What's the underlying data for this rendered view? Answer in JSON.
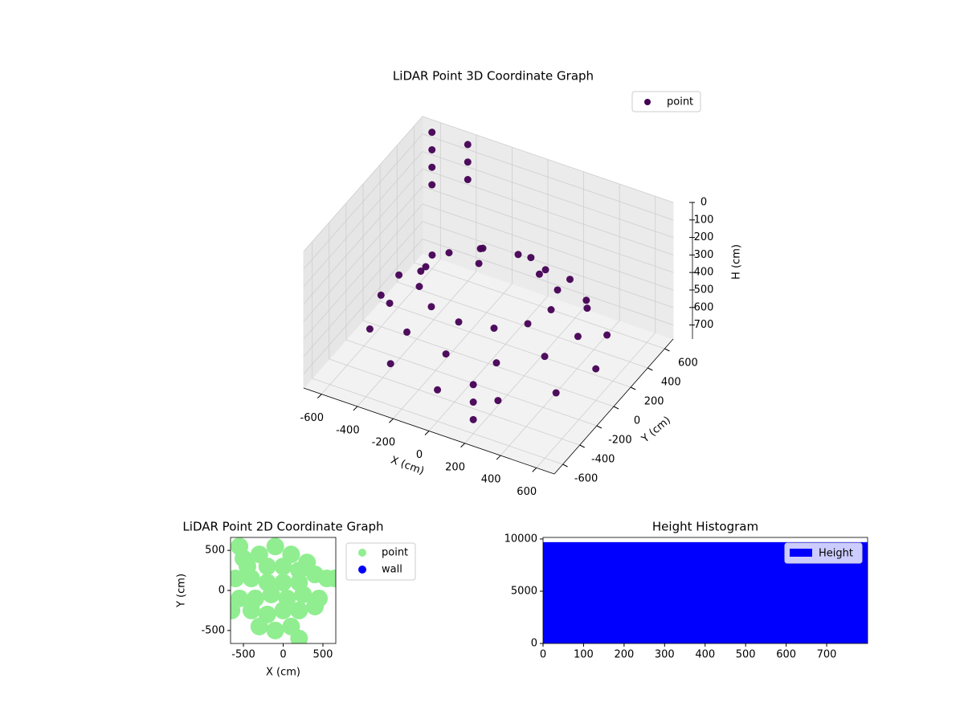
{
  "chart_data": [
    {
      "type": "scatter3d",
      "title": "LiDAR Point 3D Coordinate Graph",
      "xlabel": "X (cm)",
      "ylabel": "Y (cm)",
      "zlabel": "H (cm)",
      "xlim": [
        -700,
        700
      ],
      "ylim": [
        -700,
        700
      ],
      "zlim": [
        0,
        780
      ],
      "z_inverted": true,
      "xticks": [
        -600,
        -400,
        -200,
        0,
        200,
        400,
        600
      ],
      "yticks": [
        -600,
        -400,
        -200,
        0,
        200,
        400,
        600
      ],
      "zticks": [
        0,
        100,
        200,
        300,
        400,
        500,
        600,
        700
      ],
      "grid": true,
      "legend": "upper right",
      "series": [
        {
          "name": "point",
          "color": "#440154",
          "x": [
            500,
            433,
            250,
            0,
            -250,
            -433,
            -500,
            -433,
            -250,
            0,
            250,
            433,
            350,
            303,
            175,
            0,
            -175,
            -303,
            -350,
            -303,
            -175,
            0,
            175,
            303,
            600,
            520,
            300,
            0,
            -300,
            -520,
            -600,
            -520,
            -300,
            0,
            300,
            520,
            -600,
            -600,
            -600,
            -600,
            -400,
            -400,
            -400,
            200,
            200,
            200
          ],
          "y": [
            0,
            250,
            433,
            500,
            433,
            250,
            0,
            -250,
            -433,
            -500,
            -433,
            -250,
            0,
            175,
            303,
            350,
            303,
            175,
            0,
            -175,
            -303,
            -350,
            -303,
            -175,
            0,
            300,
            520,
            600,
            520,
            300,
            0,
            -300,
            -520,
            -600,
            -520,
            -300,
            600,
            600,
            600,
            600,
            600,
            600,
            600,
            -600,
            -600,
            -600
          ],
          "z": [
            450,
            450,
            450,
            450,
            450,
            450,
            450,
            450,
            450,
            450,
            450,
            450,
            350,
            350,
            350,
            350,
            350,
            350,
            350,
            350,
            350,
            350,
            350,
            350,
            600,
            600,
            600,
            600,
            600,
            600,
            600,
            600,
            600,
            600,
            600,
            600,
            0,
            100,
            200,
            300,
            0,
            100,
            200,
            500,
            600,
            700
          ]
        }
      ]
    },
    {
      "type": "scatter",
      "title": "LiDAR Point 2D Coordinate Graph",
      "xlabel": "X (cm)",
      "ylabel": "Y (cm)",
      "xlim": [
        -662,
        662
      ],
      "ylim": [
        -662,
        662
      ],
      "xticks": [
        -500,
        0,
        500
      ],
      "yticks": [
        -500,
        0,
        500
      ],
      "legend": "outside upper right",
      "series": [
        {
          "name": "point",
          "color": "#90ee90",
          "x": [
            -100,
            -300,
            100,
            300,
            -450,
            -200,
            0,
            200,
            400,
            -600,
            -400,
            -200,
            0,
            200,
            550,
            650,
            -550,
            -350,
            -150,
            50,
            250,
            450,
            -650,
            -400,
            -200,
            0,
            200,
            400,
            -300,
            -100,
            100,
            200,
            -500,
            -550
          ],
          "y": [
            550,
            450,
            450,
            350,
            300,
            300,
            300,
            250,
            200,
            150,
            150,
            100,
            100,
            100,
            150,
            150,
            -100,
            -100,
            -50,
            -100,
            -50,
            -100,
            -250,
            -250,
            -300,
            -250,
            -250,
            -200,
            -450,
            -500,
            -450,
            -600,
            400,
            550
          ]
        },
        {
          "name": "wall",
          "color": "#0000ff",
          "x": [],
          "y": []
        }
      ]
    },
    {
      "type": "histogram",
      "title": "Height Histogram",
      "bins": [
        0,
        801
      ],
      "xlim": [
        0,
        801
      ],
      "ylim": [
        0,
        10150
      ],
      "xticks": [
        0,
        100,
        200,
        300,
        400,
        500,
        600,
        700
      ],
      "yticks": [
        0,
        5000,
        10000
      ],
      "legend": "upper right",
      "series": [
        {
          "name": "Height",
          "color": "#0000ff",
          "values": [
            9700
          ]
        }
      ]
    }
  ]
}
